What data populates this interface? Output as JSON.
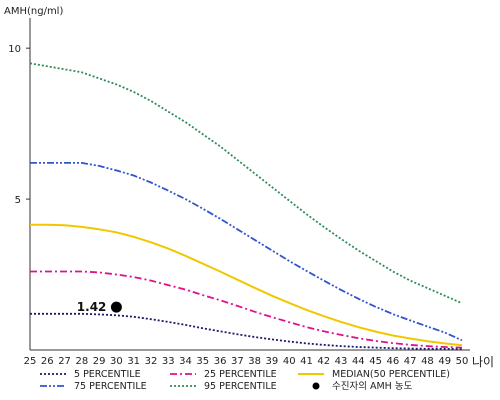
{
  "chart_data": {
    "type": "line",
    "ylabel": "AMH(ng/ml)",
    "xlabel": "나이",
    "xlim": [
      25,
      50
    ],
    "ylim": [
      0,
      11
    ],
    "yticks": [
      5,
      10
    ],
    "x": [
      25,
      26,
      27,
      28,
      29,
      30,
      31,
      32,
      33,
      34,
      35,
      36,
      37,
      38,
      39,
      40,
      41,
      42,
      43,
      44,
      45,
      46,
      47,
      48,
      49,
      50
    ],
    "series": [
      {
        "name": "5 PERCENTILE",
        "color": "#1a1a6e",
        "style": "dotted",
        "values": [
          1.2,
          1.2,
          1.2,
          1.2,
          1.18,
          1.15,
          1.1,
          1.02,
          0.93,
          0.83,
          0.72,
          0.62,
          0.52,
          0.43,
          0.35,
          0.28,
          0.22,
          0.17,
          0.13,
          0.1,
          0.08,
          0.06,
          0.05,
          0.04,
          0.04,
          0.03
        ]
      },
      {
        "name": "25 PERCENTILE",
        "color": "#e0108c",
        "style": "dashdot",
        "values": [
          2.6,
          2.6,
          2.6,
          2.6,
          2.57,
          2.5,
          2.42,
          2.3,
          2.15,
          2.0,
          1.82,
          1.65,
          1.46,
          1.27,
          1.09,
          0.92,
          0.76,
          0.62,
          0.5,
          0.39,
          0.3,
          0.23,
          0.17,
          0.13,
          0.1,
          0.08
        ]
      },
      {
        "name": "MEDIAN(50 PERCENTILE)",
        "color": "#f0c800",
        "style": "solid",
        "values": [
          4.15,
          4.15,
          4.13,
          4.08,
          4.0,
          3.9,
          3.75,
          3.57,
          3.36,
          3.12,
          2.86,
          2.6,
          2.33,
          2.06,
          1.8,
          1.56,
          1.33,
          1.12,
          0.93,
          0.76,
          0.61,
          0.48,
          0.38,
          0.29,
          0.22,
          0.16
        ]
      },
      {
        "name": "75 PERCENTILE",
        "color": "#3355cc",
        "style": "dashdotdot",
        "values": [
          6.2,
          6.2,
          6.2,
          6.2,
          6.1,
          5.95,
          5.78,
          5.55,
          5.28,
          5.0,
          4.68,
          4.35,
          4.0,
          3.65,
          3.3,
          2.95,
          2.62,
          2.3,
          1.99,
          1.7,
          1.43,
          1.19,
          0.98,
          0.78,
          0.58,
          0.32
        ]
      },
      {
        "name": "95 PERCENTILE",
        "color": "#2e8b57",
        "style": "dotted",
        "values": [
          9.5,
          9.4,
          9.3,
          9.2,
          9.0,
          8.8,
          8.55,
          8.25,
          7.9,
          7.55,
          7.15,
          6.75,
          6.3,
          5.85,
          5.4,
          4.95,
          4.5,
          4.08,
          3.68,
          3.3,
          2.95,
          2.6,
          2.3,
          2.05,
          1.8,
          1.55
        ]
      }
    ],
    "point": {
      "name": "수진자의 AMH 농도",
      "x": 30,
      "y": 1.42,
      "label": "1.42"
    },
    "legend_placement": "bottom",
    "grid": false
  }
}
